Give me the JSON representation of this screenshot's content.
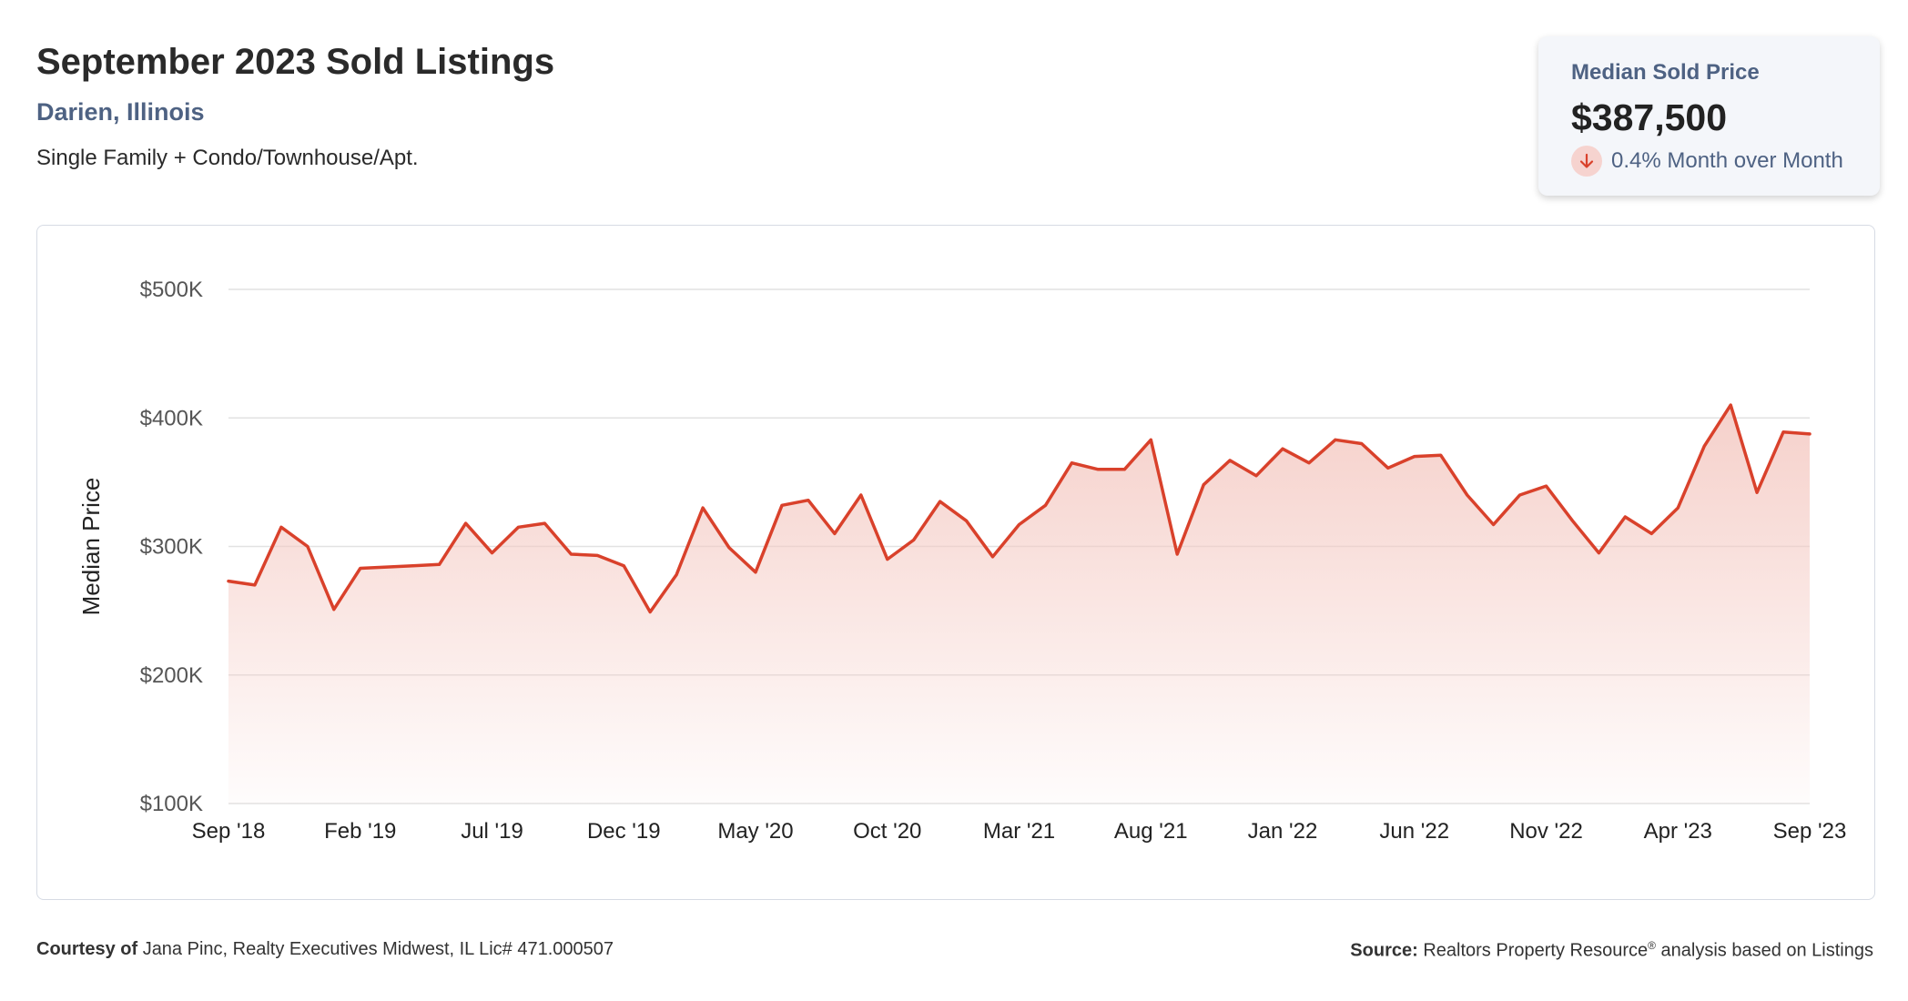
{
  "header": {
    "title": "September 2023 Sold Listings",
    "location": "Darien, Illinois",
    "property_types": "Single Family + Condo/Townhouse/Apt."
  },
  "kpi": {
    "label": "Median Sold Price",
    "value": "$387,500",
    "change": "0.4% Month over Month",
    "direction_icon": "arrow-down-icon",
    "icon_color": "#d9412b",
    "icon_bg": "#f6d3cf"
  },
  "footer": {
    "courtesy_label": "Courtesy of",
    "courtesy_text": "Jana Pinc, Realty Executives Midwest, IL Lic# 471.000507",
    "source_label": "Source:",
    "source_text": "Realtors Property Resource",
    "source_mark": "®",
    "source_suffix": " analysis based on Listings"
  },
  "colors": {
    "line": "#d9412b",
    "fill_top": "#f4c8c1",
    "grid": "#e2e2e2",
    "axis_text": "#555555"
  },
  "chart_data": {
    "type": "area",
    "title": "",
    "ylabel": "Median Price",
    "xlabel": "",
    "ylim": [
      100000,
      500000
    ],
    "yticks": [
      100000,
      200000,
      300000,
      400000,
      500000
    ],
    "ytick_labels": [
      "$100K",
      "$200K",
      "$300K",
      "$400K",
      "$500K"
    ],
    "xtick_labels": [
      "Sep '18",
      "Feb '19",
      "Jul '19",
      "Dec '19",
      "May '20",
      "Oct '20",
      "Mar '21",
      "Aug '21",
      "Jan '22",
      "Jun '22",
      "Nov '22",
      "Apr '23",
      "Sep '23"
    ],
    "xtick_interval_months": 5,
    "grid": true,
    "legend": "none",
    "series": [
      {
        "x": [
          "2018-09",
          "2018-10",
          "2018-11",
          "2018-12",
          "2019-01",
          "2019-02",
          "2019-03",
          "2019-04",
          "2019-05",
          "2019-06",
          "2019-07",
          "2019-08",
          "2019-09",
          "2019-10",
          "2019-11",
          "2019-12",
          "2020-01",
          "2020-02",
          "2020-03",
          "2020-04",
          "2020-05",
          "2020-06",
          "2020-07",
          "2020-08",
          "2020-09",
          "2020-10",
          "2020-11",
          "2020-12",
          "2021-01",
          "2021-02",
          "2021-03",
          "2021-04",
          "2021-05",
          "2021-06",
          "2021-07",
          "2021-08",
          "2021-09",
          "2021-10",
          "2021-11",
          "2021-12",
          "2022-01",
          "2022-02",
          "2022-03",
          "2022-04",
          "2022-05",
          "2022-06",
          "2022-07",
          "2022-08",
          "2022-09",
          "2022-10",
          "2022-11",
          "2022-12",
          "2023-01",
          "2023-02",
          "2023-03",
          "2023-04",
          "2023-05",
          "2023-06",
          "2023-07",
          "2023-08",
          "2023-09"
        ],
        "values": [
          273000,
          270000,
          315000,
          300000,
          251000,
          283000,
          284000,
          285000,
          286000,
          318000,
          295000,
          315000,
          318000,
          294000,
          293000,
          285000,
          249000,
          278000,
          330000,
          299000,
          280000,
          332000,
          336000,
          310000,
          340000,
          290000,
          305000,
          335000,
          320000,
          292000,
          317000,
          332000,
          365000,
          360000,
          360000,
          383000,
          294000,
          348000,
          367000,
          355000,
          376000,
          365000,
          383000,
          380000,
          361000,
          370000,
          371000,
          340000,
          317000,
          340000,
          347000,
          320000,
          295000,
          323000,
          310000,
          330000,
          378000,
          410000,
          342000,
          389000,
          387500
        ]
      }
    ]
  }
}
